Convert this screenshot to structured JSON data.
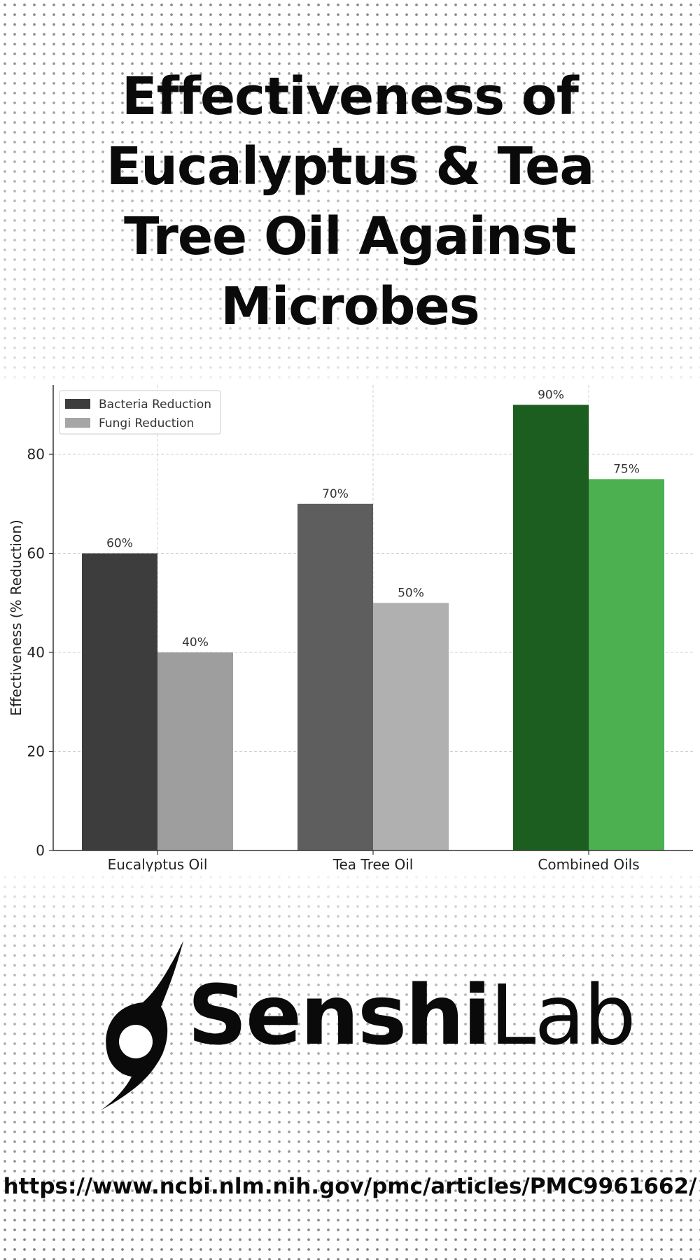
{
  "title": "Effectiveness of Eucalyptus & Tea Tree Oil Against Microbes",
  "logo": {
    "icon": "senshi-flame-icon",
    "bold_text": "Senshi",
    "light_text": "Lab"
  },
  "source_url": "https://www.ncbi.nlm.nih.gov/pmc/articles/PMC9961662/",
  "chart_data": {
    "type": "bar",
    "title": "",
    "xlabel": "",
    "ylabel": "Effectiveness (% Reduction)",
    "ylim": [
      0,
      94
    ],
    "yticks": [
      0,
      20,
      40,
      60,
      80
    ],
    "grid": true,
    "legend_position": "top-left",
    "categories": [
      "Eucalyptus Oil",
      "Tea Tree Oil",
      "Combined Oils"
    ],
    "series": [
      {
        "name": "Bacteria Reduction",
        "values": [
          60,
          70,
          90
        ],
        "labels": [
          "60%",
          "70%",
          "90%"
        ],
        "colors": [
          "#3d3d3d",
          "#5e5e5e",
          "#1c5e20"
        ],
        "legend_color": "#3d3d3d"
      },
      {
        "name": "Fungi Reduction",
        "values": [
          40,
          50,
          75
        ],
        "labels": [
          "40%",
          "50%",
          "75%"
        ],
        "colors": [
          "#9e9e9e",
          "#b0b0b0",
          "#4caf50"
        ],
        "legend_color": "#a6a6a6"
      }
    ]
  }
}
